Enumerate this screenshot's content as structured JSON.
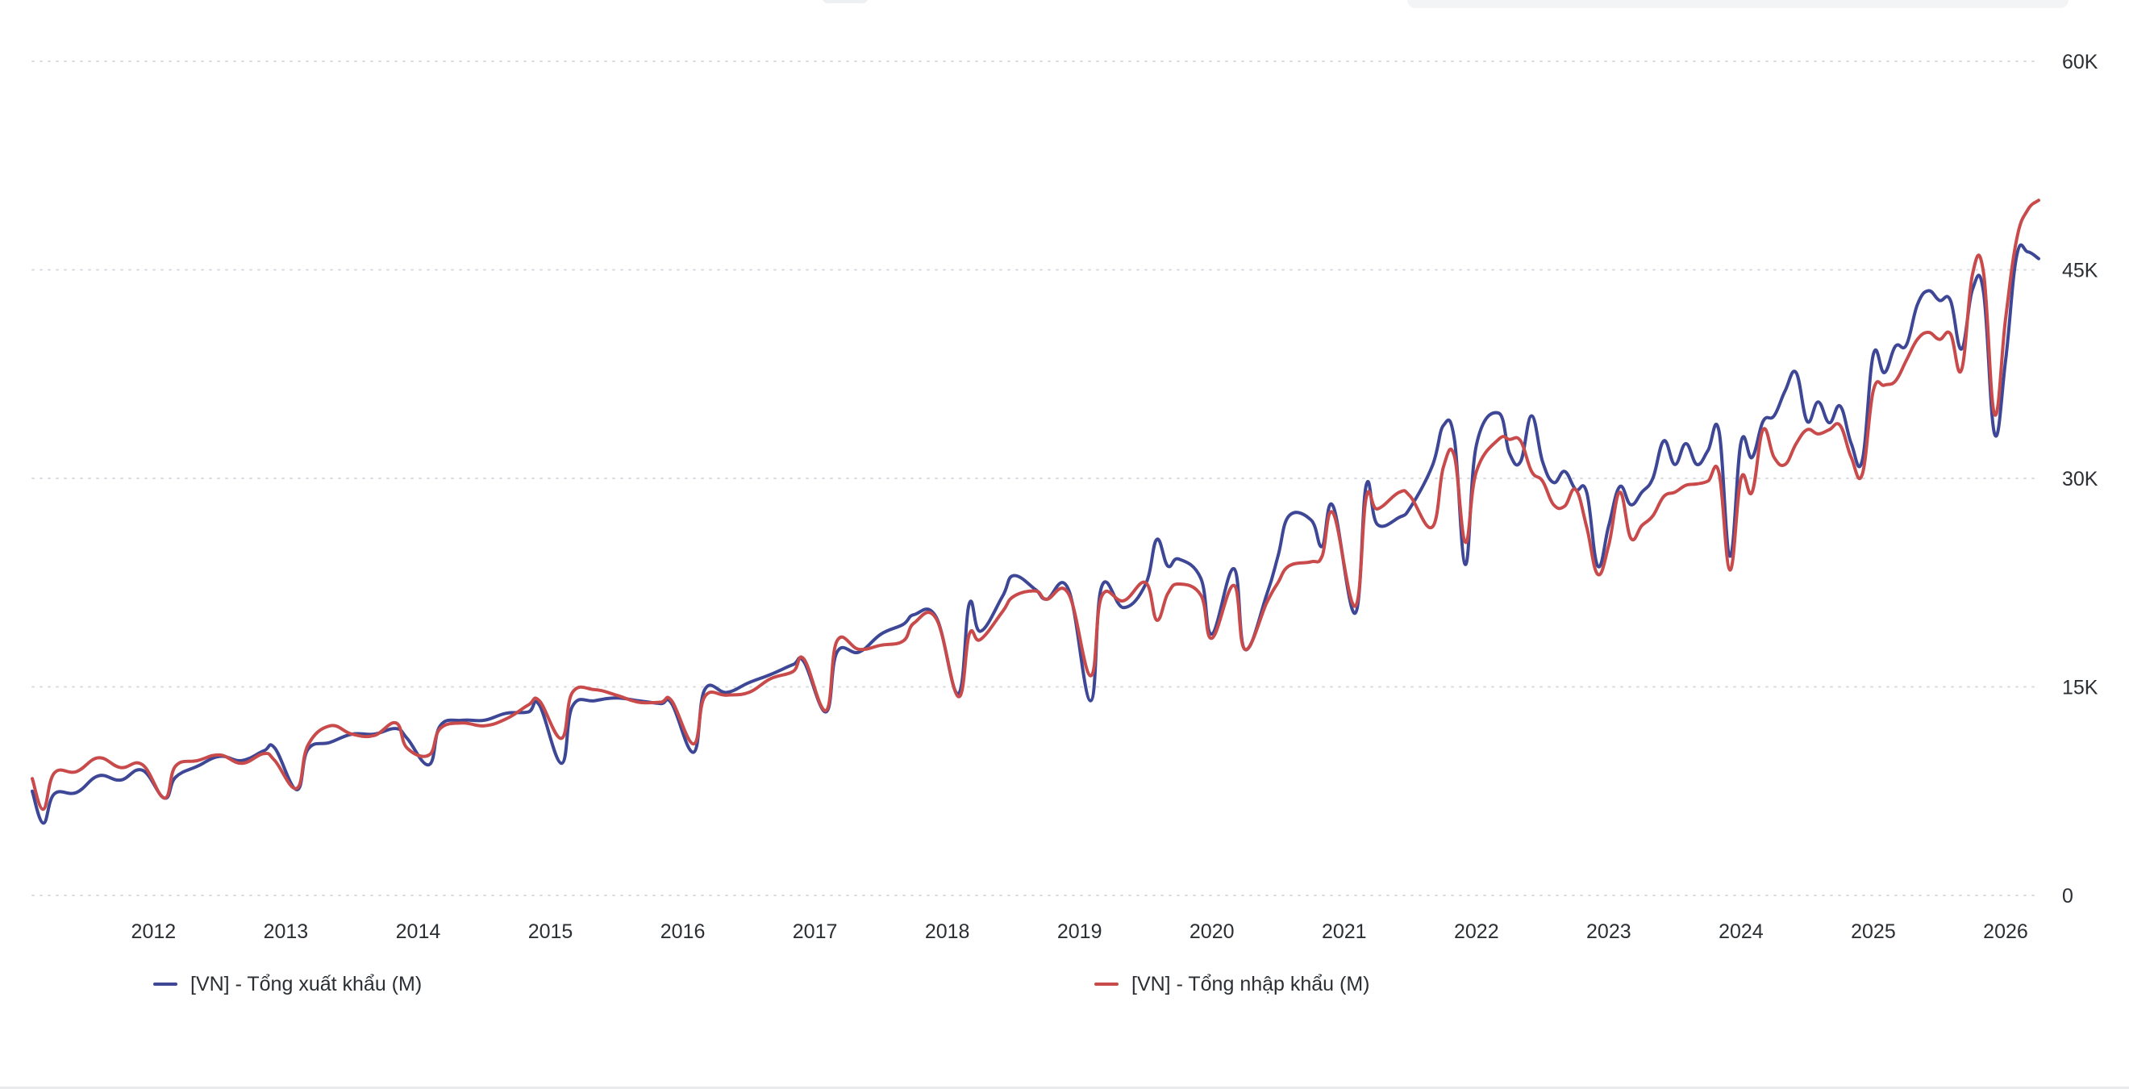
{
  "chart_data": {
    "type": "line",
    "title": "",
    "xlabel": "",
    "ylabel": "",
    "x_axis": {
      "type": "date",
      "range": [
        "2011-02",
        "2026-04"
      ],
      "tick_labels": [
        "2012",
        "2013",
        "2014",
        "2015",
        "2016",
        "2017",
        "2018",
        "2019",
        "2020",
        "2021",
        "2022",
        "2023",
        "2024",
        "2025",
        "2026"
      ]
    },
    "y_axis": {
      "position": "right",
      "range": [
        0,
        60000
      ],
      "ticks": [
        0,
        15000,
        30000,
        45000,
        60000
      ],
      "tick_labels": [
        "0",
        "15K",
        "30K",
        "45K",
        "60K"
      ]
    },
    "grid": "horizontal-dotted",
    "legend_position": "bottom",
    "series": [
      {
        "name": "[VN] - Tổng xuất khẩu (M)",
        "color": "#3d4796",
        "points": [
          [
            "2011-02",
            7500
          ],
          [
            "2011-03",
            5200
          ],
          [
            "2011-04",
            7300
          ],
          [
            "2011-06",
            7400
          ],
          [
            "2011-08",
            8600
          ],
          [
            "2011-10",
            8300
          ],
          [
            "2011-12",
            9000
          ],
          [
            "2012-02",
            7000
          ],
          [
            "2012-03",
            8500
          ],
          [
            "2012-05",
            9300
          ],
          [
            "2012-07",
            10000
          ],
          [
            "2012-09",
            9700
          ],
          [
            "2012-11",
            10400
          ],
          [
            "2012-12",
            10600
          ],
          [
            "2013-02",
            7600
          ],
          [
            "2013-03",
            10500
          ],
          [
            "2013-05",
            11000
          ],
          [
            "2013-07",
            11600
          ],
          [
            "2013-09",
            11600
          ],
          [
            "2013-11",
            12000
          ],
          [
            "2013-12",
            11300
          ],
          [
            "2014-02",
            9400
          ],
          [
            "2014-03",
            12200
          ],
          [
            "2014-05",
            12600
          ],
          [
            "2014-07",
            12600
          ],
          [
            "2014-09",
            13100
          ],
          [
            "2014-11",
            13200
          ],
          [
            "2014-12",
            13700
          ],
          [
            "2015-02",
            9500
          ],
          [
            "2015-03",
            13600
          ],
          [
            "2015-05",
            14000
          ],
          [
            "2015-07",
            14200
          ],
          [
            "2015-09",
            14000
          ],
          [
            "2015-11",
            13800
          ],
          [
            "2015-12",
            13800
          ],
          [
            "2016-02",
            10300
          ],
          [
            "2016-03",
            14800
          ],
          [
            "2016-05",
            14600
          ],
          [
            "2016-07",
            15300
          ],
          [
            "2016-09",
            15900
          ],
          [
            "2016-11",
            16600
          ],
          [
            "2016-12",
            16800
          ],
          [
            "2017-02",
            13200
          ],
          [
            "2017-03",
            17500
          ],
          [
            "2017-05",
            17500
          ],
          [
            "2017-07",
            18800
          ],
          [
            "2017-09",
            19500
          ],
          [
            "2017-10",
            20200
          ],
          [
            "2017-12",
            20000
          ],
          [
            "2018-02",
            14500
          ],
          [
            "2018-03",
            21000
          ],
          [
            "2018-04",
            19000
          ],
          [
            "2018-06",
            21500
          ],
          [
            "2018-07",
            23000
          ],
          [
            "2018-09",
            22000
          ],
          [
            "2018-10",
            21300
          ],
          [
            "2018-12",
            22000
          ],
          [
            "2019-02",
            14000
          ],
          [
            "2019-03",
            22200
          ],
          [
            "2019-05",
            20700
          ],
          [
            "2019-07",
            22400
          ],
          [
            "2019-08",
            25600
          ],
          [
            "2019-09",
            23700
          ],
          [
            "2019-10",
            24200
          ],
          [
            "2019-12",
            22800
          ],
          [
            "2020-01",
            18800
          ],
          [
            "2020-03",
            23500
          ],
          [
            "2020-04",
            17700
          ],
          [
            "2020-06",
            21700
          ],
          [
            "2020-07",
            24400
          ],
          [
            "2020-08",
            27300
          ],
          [
            "2020-10",
            27000
          ],
          [
            "2020-11",
            25100
          ],
          [
            "2020-12",
            28000
          ],
          [
            "2021-02",
            20300
          ],
          [
            "2021-03",
            29500
          ],
          [
            "2021-04",
            26700
          ],
          [
            "2021-06",
            27200
          ],
          [
            "2021-07",
            27900
          ],
          [
            "2021-09",
            30900
          ],
          [
            "2021-10",
            33800
          ],
          [
            "2021-11",
            32800
          ],
          [
            "2021-12",
            23800
          ],
          [
            "2022-01",
            32400
          ],
          [
            "2022-03",
            34700
          ],
          [
            "2022-04",
            31800
          ],
          [
            "2022-05",
            31200
          ],
          [
            "2022-06",
            34500
          ],
          [
            "2022-07",
            31200
          ],
          [
            "2022-08",
            29700
          ],
          [
            "2022-09",
            30500
          ],
          [
            "2022-10",
            29200
          ],
          [
            "2022-11",
            29000
          ],
          [
            "2022-12",
            23700
          ],
          [
            "2023-01",
            26600
          ],
          [
            "2023-02",
            29400
          ],
          [
            "2023-03",
            28100
          ],
          [
            "2023-04",
            29000
          ],
          [
            "2023-05",
            30000
          ],
          [
            "2023-06",
            32700
          ],
          [
            "2023-07",
            31000
          ],
          [
            "2023-08",
            32500
          ],
          [
            "2023-09",
            31000
          ],
          [
            "2023-10",
            32000
          ],
          [
            "2023-11",
            33400
          ],
          [
            "2023-12",
            24400
          ],
          [
            "2024-01",
            32600
          ],
          [
            "2024-02",
            31500
          ],
          [
            "2024-03",
            34100
          ],
          [
            "2024-04",
            34500
          ],
          [
            "2024-05",
            36300
          ],
          [
            "2024-06",
            37600
          ],
          [
            "2024-07",
            34100
          ],
          [
            "2024-08",
            35500
          ],
          [
            "2024-09",
            34000
          ],
          [
            "2024-10",
            35200
          ],
          [
            "2024-11",
            32500
          ],
          [
            "2024-12",
            31300
          ],
          [
            "2025-01",
            38900
          ],
          [
            "2025-02",
            37600
          ],
          [
            "2025-03",
            39500
          ],
          [
            "2025-04",
            39600
          ],
          [
            "2025-05",
            42500
          ],
          [
            "2025-06",
            43500
          ],
          [
            "2025-07",
            42800
          ],
          [
            "2025-08",
            42800
          ],
          [
            "2025-09",
            39300
          ],
          [
            "2025-10",
            43600
          ],
          [
            "2025-11",
            43400
          ],
          [
            "2025-12",
            33200
          ],
          [
            "2026-01",
            38500
          ],
          [
            "2026-02",
            46000
          ],
          [
            "2026-03",
            46300
          ],
          [
            "2026-04",
            45800
          ]
        ]
      },
      {
        "name": "[VN] - Tổng nhập khẩu (M)",
        "color": "#c94a4a",
        "points": [
          [
            "2011-02",
            8400
          ],
          [
            "2011-03",
            6200
          ],
          [
            "2011-04",
            8800
          ],
          [
            "2011-06",
            8900
          ],
          [
            "2011-08",
            9900
          ],
          [
            "2011-10",
            9200
          ],
          [
            "2011-12",
            9400
          ],
          [
            "2012-02",
            7000
          ],
          [
            "2012-03",
            9300
          ],
          [
            "2012-05",
            9700
          ],
          [
            "2012-07",
            10100
          ],
          [
            "2012-09",
            9500
          ],
          [
            "2012-11",
            10200
          ],
          [
            "2012-12",
            9700
          ],
          [
            "2013-02",
            7700
          ],
          [
            "2013-03",
            10800
          ],
          [
            "2013-05",
            12200
          ],
          [
            "2013-07",
            11600
          ],
          [
            "2013-09",
            11500
          ],
          [
            "2013-11",
            12400
          ],
          [
            "2013-12",
            10600
          ],
          [
            "2014-02",
            10100
          ],
          [
            "2014-03",
            12000
          ],
          [
            "2014-05",
            12400
          ],
          [
            "2014-07",
            12200
          ],
          [
            "2014-09",
            12700
          ],
          [
            "2014-11",
            13700
          ],
          [
            "2014-12",
            14000
          ],
          [
            "2015-02",
            11300
          ],
          [
            "2015-03",
            14600
          ],
          [
            "2015-05",
            14800
          ],
          [
            "2015-07",
            14400
          ],
          [
            "2015-09",
            13900
          ],
          [
            "2015-11",
            13900
          ],
          [
            "2015-12",
            14000
          ],
          [
            "2016-02",
            10900
          ],
          [
            "2016-03",
            14300
          ],
          [
            "2016-05",
            14400
          ],
          [
            "2016-07",
            14600
          ],
          [
            "2016-09",
            15600
          ],
          [
            "2016-11",
            16100
          ],
          [
            "2016-12",
            17000
          ],
          [
            "2017-02",
            13300
          ],
          [
            "2017-03",
            18300
          ],
          [
            "2017-05",
            17700
          ],
          [
            "2017-07",
            18000
          ],
          [
            "2017-09",
            18300
          ],
          [
            "2017-10",
            19600
          ],
          [
            "2017-12",
            19900
          ],
          [
            "2018-02",
            14300
          ],
          [
            "2018-03",
            18800
          ],
          [
            "2018-04",
            18400
          ],
          [
            "2018-06",
            20400
          ],
          [
            "2018-07",
            21500
          ],
          [
            "2018-09",
            21900
          ],
          [
            "2018-10",
            21300
          ],
          [
            "2018-12",
            21700
          ],
          [
            "2019-02",
            15800
          ],
          [
            "2019-03",
            21500
          ],
          [
            "2019-05",
            21200
          ],
          [
            "2019-07",
            22500
          ],
          [
            "2019-08",
            19800
          ],
          [
            "2019-09",
            21700
          ],
          [
            "2019-10",
            22400
          ],
          [
            "2019-12",
            21600
          ],
          [
            "2020-01",
            18500
          ],
          [
            "2020-03",
            22300
          ],
          [
            "2020-04",
            17700
          ],
          [
            "2020-06",
            21100
          ],
          [
            "2020-07",
            22500
          ],
          [
            "2020-08",
            23700
          ],
          [
            "2020-10",
            24000
          ],
          [
            "2020-11",
            24400
          ],
          [
            "2020-12",
            27500
          ],
          [
            "2021-02",
            20800
          ],
          [
            "2021-03",
            28600
          ],
          [
            "2021-04",
            27800
          ],
          [
            "2021-06",
            29000
          ],
          [
            "2021-07",
            28700
          ],
          [
            "2021-09",
            26500
          ],
          [
            "2021-10",
            30800
          ],
          [
            "2021-11",
            31600
          ],
          [
            "2021-12",
            25400
          ],
          [
            "2022-01",
            30500
          ],
          [
            "2022-03",
            32800
          ],
          [
            "2022-04",
            32800
          ],
          [
            "2022-05",
            32700
          ],
          [
            "2022-06",
            30500
          ],
          [
            "2022-07",
            29800
          ],
          [
            "2022-08",
            28100
          ],
          [
            "2022-09",
            28000
          ],
          [
            "2022-10",
            29200
          ],
          [
            "2022-11",
            26500
          ],
          [
            "2022-12",
            23100
          ],
          [
            "2023-01",
            25200
          ],
          [
            "2023-02",
            29000
          ],
          [
            "2023-03",
            25700
          ],
          [
            "2023-04",
            26600
          ],
          [
            "2023-05",
            27300
          ],
          [
            "2023-06",
            28700
          ],
          [
            "2023-07",
            29000
          ],
          [
            "2023-08",
            29500
          ],
          [
            "2023-09",
            29600
          ],
          [
            "2023-10",
            29800
          ],
          [
            "2023-11",
            30400
          ],
          [
            "2023-12",
            23400
          ],
          [
            "2024-01",
            30000
          ],
          [
            "2024-02",
            29000
          ],
          [
            "2024-03",
            33500
          ],
          [
            "2024-04",
            31500
          ],
          [
            "2024-05",
            31000
          ],
          [
            "2024-06",
            32500
          ],
          [
            "2024-07",
            33500
          ],
          [
            "2024-08",
            33200
          ],
          [
            "2024-09",
            33500
          ],
          [
            "2024-10",
            33800
          ],
          [
            "2024-11",
            31500
          ],
          [
            "2024-12",
            30300
          ],
          [
            "2025-01",
            36300
          ],
          [
            "2025-02",
            36700
          ],
          [
            "2025-03",
            37000
          ],
          [
            "2025-04",
            38500
          ],
          [
            "2025-05",
            40000
          ],
          [
            "2025-06",
            40500
          ],
          [
            "2025-07",
            40000
          ],
          [
            "2025-08",
            40400
          ],
          [
            "2025-09",
            37800
          ],
          [
            "2025-10",
            44700
          ],
          [
            "2025-11",
            44800
          ],
          [
            "2025-12",
            34600
          ],
          [
            "2026-01",
            41500
          ],
          [
            "2026-02",
            47200
          ],
          [
            "2026-03",
            49300
          ],
          [
            "2026-04",
            50000
          ]
        ]
      }
    ]
  }
}
